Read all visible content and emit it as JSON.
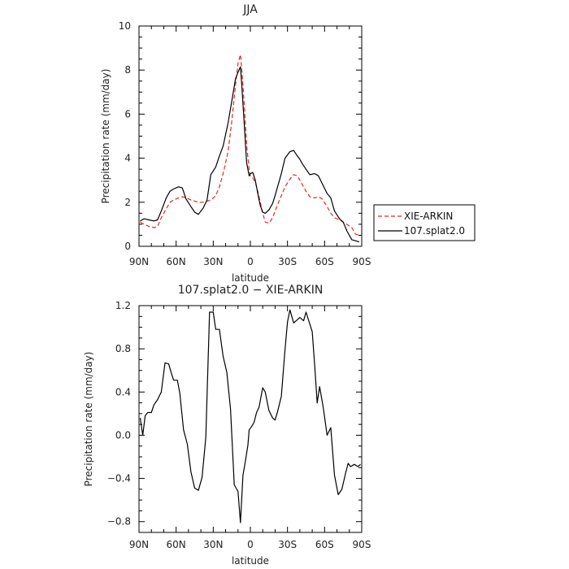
{
  "chart_data": [
    {
      "type": "line",
      "title": "JJA",
      "xlabel": "latitude",
      "ylabel": "Precipitation rate (mm/day)",
      "xlim": [
        -90,
        90
      ],
      "ylim": [
        0,
        10
      ],
      "xticks": [
        -90,
        -60,
        -30,
        0,
        30,
        60,
        90
      ],
      "xtick_labels": [
        "90N",
        "60N",
        "30N",
        "0",
        "30S",
        "60S",
        "90S"
      ],
      "yticks": [
        0,
        2,
        4,
        6,
        8,
        10
      ],
      "ytick_labels": [
        "0",
        "2",
        "4",
        "6",
        "8",
        "10"
      ],
      "legend_position": "right",
      "series": [
        {
          "name": "XIE-ARKIN",
          "color": "#e8262a",
          "dash": "dashed",
          "x": [
            -89,
            -86,
            -82,
            -78,
            -75,
            -72,
            -68,
            -65,
            -62,
            -58,
            -55,
            -52,
            -48,
            -45,
            -42,
            -38,
            -35,
            -32,
            -28,
            -25,
            -22,
            -18,
            -15,
            -12,
            -10,
            -8,
            -7,
            -5,
            -3,
            -1,
            0,
            2,
            4,
            6,
            8,
            10,
            12,
            15,
            18,
            20,
            22,
            25,
            28,
            32,
            35,
            38,
            40,
            42,
            45,
            48,
            52,
            55,
            58,
            62,
            65,
            68,
            72,
            75,
            78,
            82,
            85,
            88
          ],
          "y": [
            1.1,
            1.0,
            0.9,
            0.85,
            0.9,
            1.3,
            1.7,
            2.0,
            2.1,
            2.2,
            2.25,
            2.2,
            2.1,
            2.05,
            2.0,
            2.0,
            2.05,
            2.1,
            2.3,
            2.7,
            3.3,
            4.3,
            5.7,
            7.3,
            8.3,
            8.7,
            8.1,
            6.5,
            4.6,
            3.5,
            3.2,
            3.1,
            2.9,
            2.5,
            2.0,
            1.5,
            1.1,
            1.05,
            1.3,
            1.6,
            1.9,
            2.3,
            2.7,
            3.05,
            3.25,
            3.2,
            3.0,
            2.8,
            2.5,
            2.25,
            2.2,
            2.25,
            2.15,
            1.8,
            1.5,
            1.3,
            1.2,
            1.1,
            1.0,
            0.85,
            0.55,
            0.5
          ]
        },
        {
          "name": "107.splat2.0",
          "color": "#000000",
          "dash": "solid",
          "x": [
            -89,
            -86,
            -82,
            -78,
            -75,
            -72,
            -68,
            -65,
            -62,
            -58,
            -55,
            -52,
            -48,
            -45,
            -42,
            -38,
            -35,
            -32,
            -28,
            -25,
            -22,
            -18,
            -15,
            -12,
            -10,
            -8,
            -7,
            -5,
            -3,
            -1,
            0,
            2,
            4,
            6,
            8,
            10,
            12,
            15,
            18,
            20,
            22,
            25,
            28,
            32,
            35,
            38,
            40,
            42,
            45,
            48,
            52,
            55,
            58,
            62,
            65,
            68,
            72,
            75,
            78,
            82,
            85,
            88
          ],
          "y": [
            1.15,
            1.25,
            1.2,
            1.15,
            1.2,
            1.6,
            2.2,
            2.5,
            2.6,
            2.7,
            2.65,
            2.15,
            1.8,
            1.55,
            1.45,
            1.75,
            2.1,
            3.25,
            3.6,
            4.1,
            4.55,
            5.6,
            6.6,
            7.6,
            7.9,
            8.15,
            7.4,
            5.6,
            3.8,
            3.2,
            3.3,
            3.35,
            3.0,
            2.4,
            1.85,
            1.55,
            1.5,
            1.65,
            1.95,
            2.3,
            2.7,
            3.3,
            4.0,
            4.3,
            4.35,
            4.1,
            3.95,
            3.75,
            3.5,
            3.25,
            3.3,
            3.2,
            2.85,
            2.4,
            2.2,
            1.6,
            1.25,
            1.1,
            0.7,
            0.3,
            0.25,
            0.2
          ]
        }
      ]
    },
    {
      "type": "line",
      "title": "107.splat2.0 − XIE-ARKIN",
      "xlabel": "latitude",
      "ylabel": "Precipitation rate (mm/day)",
      "xlim": [
        -90,
        90
      ],
      "ylim": [
        -0.9,
        1.2
      ],
      "xticks": [
        -90,
        -60,
        -30,
        0,
        30,
        60,
        90
      ],
      "xtick_labels": [
        "90N",
        "60N",
        "30N",
        "0",
        "30S",
        "60S",
        "90S"
      ],
      "yticks": [
        -0.8,
        -0.4,
        0.0,
        0.4,
        0.8,
        1.2
      ],
      "ytick_labels": [
        "−0.8",
        "−0.4",
        "0.0",
        "0.4",
        "0.8",
        "1.2"
      ],
      "series": [
        {
          "name": "",
          "color": "#000000",
          "dash": "solid",
          "x": [
            -89,
            -87,
            -85,
            -83,
            -80,
            -78,
            -75,
            -72,
            -69,
            -66,
            -64,
            -62,
            -59,
            -57,
            -54,
            -51,
            -48,
            -45,
            -42,
            -39,
            -36,
            -33,
            -30,
            -28,
            -25,
            -22,
            -19,
            -16,
            -13,
            -10,
            -8,
            -6,
            -4,
            -2,
            -1,
            1,
            3,
            5,
            7,
            10,
            12,
            15,
            18,
            20,
            22,
            25,
            28,
            30,
            32,
            35,
            38,
            40,
            43,
            45,
            48,
            50,
            52,
            54,
            56,
            59,
            62,
            65,
            68,
            71,
            74,
            77,
            79,
            81,
            84,
            87,
            89
          ],
          "y": [
            0.16,
            0.0,
            0.18,
            0.21,
            0.21,
            0.28,
            0.33,
            0.4,
            0.67,
            0.66,
            0.58,
            0.51,
            0.51,
            0.39,
            0.05,
            -0.08,
            -0.34,
            -0.49,
            -0.51,
            -0.39,
            -0.02,
            1.14,
            1.14,
            0.98,
            0.98,
            0.73,
            0.58,
            0.24,
            -0.46,
            -0.52,
            -0.81,
            -0.37,
            -0.24,
            -0.09,
            0.05,
            0.08,
            0.12,
            0.21,
            0.26,
            0.44,
            0.4,
            0.23,
            0.16,
            0.14,
            0.22,
            0.36,
            0.79,
            1.05,
            1.16,
            1.04,
            1.07,
            1.09,
            1.06,
            1.14,
            1.03,
            0.96,
            0.64,
            0.3,
            0.45,
            0.25,
            0.0,
            0.07,
            -0.37,
            -0.55,
            -0.5,
            -0.35,
            -0.26,
            -0.29,
            -0.27,
            -0.29,
            -0.27
          ]
        }
      ]
    }
  ]
}
